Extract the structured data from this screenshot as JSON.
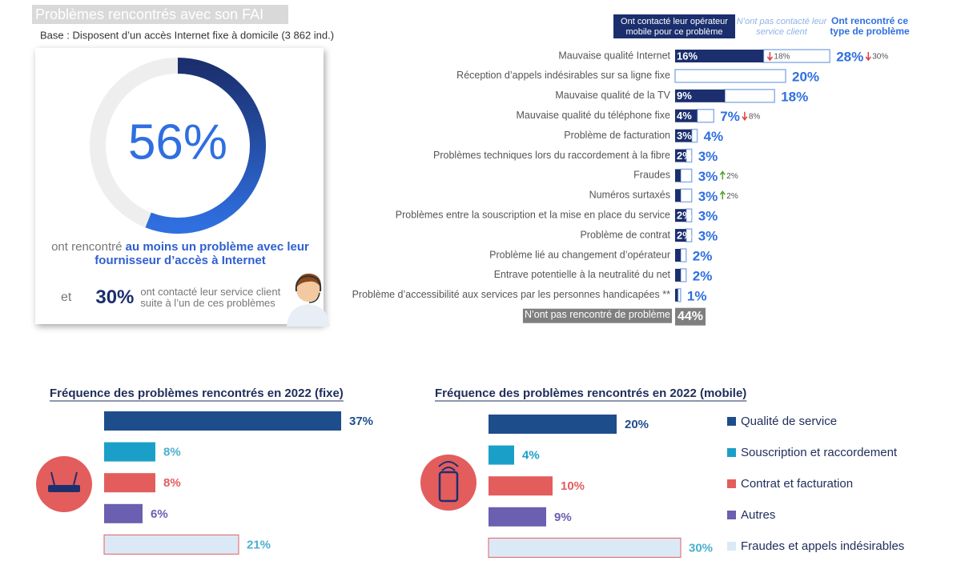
{
  "title": "Problèmes rencontrés avec son FAI",
  "base": "Base : Disposent d’un accès Internet fixe à domicile (3 862 ind.)",
  "summary": {
    "text1": "ont rencontré",
    "highlight": "au moins un problème avec leur fournisseur d’accès à Internet",
    "and": "et",
    "contacted": "30%",
    "contacted_text": "ont contacté leur service client suite à l’un de ces problèmes"
  },
  "chart_data": [
    {
      "type": "donut",
      "values": [
        56
      ],
      "value_labels": [
        "56%"
      ],
      "color": "#2f6fe0",
      "track_color": "#eeeeee"
    },
    {
      "type": "stacked-bar",
      "categories": [
        "Mauvaise qualité Internet",
        "Réception d’appels indésirables sur sa ligne fixe",
        "Mauvaise qualité de la TV",
        "Mauvaise qualité du téléphone fixe",
        "Problème de facturation",
        "Problèmes techniques lors du raccordement à la fibre",
        "Fraudes",
        "Numéros surtaxés",
        "Problèmes entre la souscription et la mise en place du service",
        "Problème de contrat",
        "Problème lié au changement d’opérateur",
        "Entrave potentielle à la neutralité du net",
        "Problème d’accessibilité aux services par les personnes handicapées **",
        "N’ont pas rencontré de problème"
      ],
      "series": [
        {
          "name": "Ont contacté leur opérateur mobile pour ce problème",
          "color": "#1b2f6e",
          "values": [
            16,
            0,
            9,
            4,
            3,
            2,
            1,
            1,
            2,
            2,
            1,
            1,
            0.5,
            null
          ],
          "value_labels": [
            "16%",
            null,
            "9%",
            "4%",
            "3%",
            "2%",
            null,
            null,
            "2%",
            "2%",
            null,
            null,
            null,
            null
          ],
          "previous_values": [
            18,
            null,
            null,
            null,
            null,
            null,
            null,
            null,
            null,
            null,
            null,
            null,
            null,
            null
          ],
          "previous_value_labels": [
            "18%",
            null,
            null,
            null,
            null,
            null,
            null,
            null,
            null,
            null,
            null,
            null,
            null,
            null
          ]
        },
        {
          "name": "N’ont pas contacté leur service client",
          "color": "#8fb2e6",
          "values": [
            12,
            20,
            9,
            3,
            1,
            1,
            2,
            2,
            1,
            1,
            1,
            1,
            0.5,
            null
          ]
        },
        {
          "name": "Ont rencontré ce type de problème",
          "color": "#2f6fe0",
          "values": [
            28,
            20,
            18,
            7,
            4,
            3,
            3,
            3,
            3,
            3,
            2,
            2,
            1,
            44
          ],
          "value_labels": [
            "28%",
            "20%",
            "18%",
            "7%",
            "4%",
            "3%",
            "3%",
            "3%",
            "3%",
            "3%",
            "2%",
            "2%",
            "1%",
            "44%"
          ],
          "previous_values": [
            30,
            null,
            null,
            8,
            null,
            null,
            2,
            2,
            null,
            null,
            null,
            null,
            null,
            null
          ],
          "previous_value_labels": [
            "30%",
            null,
            null,
            "8%",
            null,
            null,
            "2%",
            "2%",
            null,
            null,
            null,
            null,
            null,
            null
          ]
        }
      ],
      "none_color": "#7f7f7f"
    },
    {
      "type": "hbar",
      "title": "Fréquence des problèmes rencontrés en 2022 (fixe)",
      "values": [
        37,
        8,
        8,
        6,
        21
      ],
      "value_labels": [
        "37%",
        "8%",
        "8%",
        "6%",
        "21%"
      ],
      "colors": [
        "#1e4d8c",
        "#1aa0c8",
        "#e35d5d",
        "#6a5fb0",
        "#dbe9f7"
      ],
      "value_label_colors": [
        "#1e4d8c",
        "#4ab0d0",
        "#e35d5d",
        "#6a5fb0",
        "#4ab0d0"
      ]
    },
    {
      "type": "hbar",
      "title": "Fréquence des problèmes rencontrés en 2022 (mobile)",
      "categories": [
        "Qualité de service",
        "Souscription et raccordement",
        "Contrat et facturation",
        "Autres",
        "Fraudes et appels indésirables"
      ],
      "values": [
        20,
        4,
        10,
        9,
        30
      ],
      "value_labels": [
        "20%",
        "4%",
        "10%",
        "9%",
        "30%"
      ],
      "colors": [
        "#1e4d8c",
        "#1aa0c8",
        "#e35d5d",
        "#6a5fb0",
        "#dbe9f7"
      ],
      "value_label_colors": [
        "#1e4d8c",
        "#1aa0c8",
        "#e35d5d",
        "#6a5fb0",
        "#4ab0d0"
      ]
    }
  ]
}
